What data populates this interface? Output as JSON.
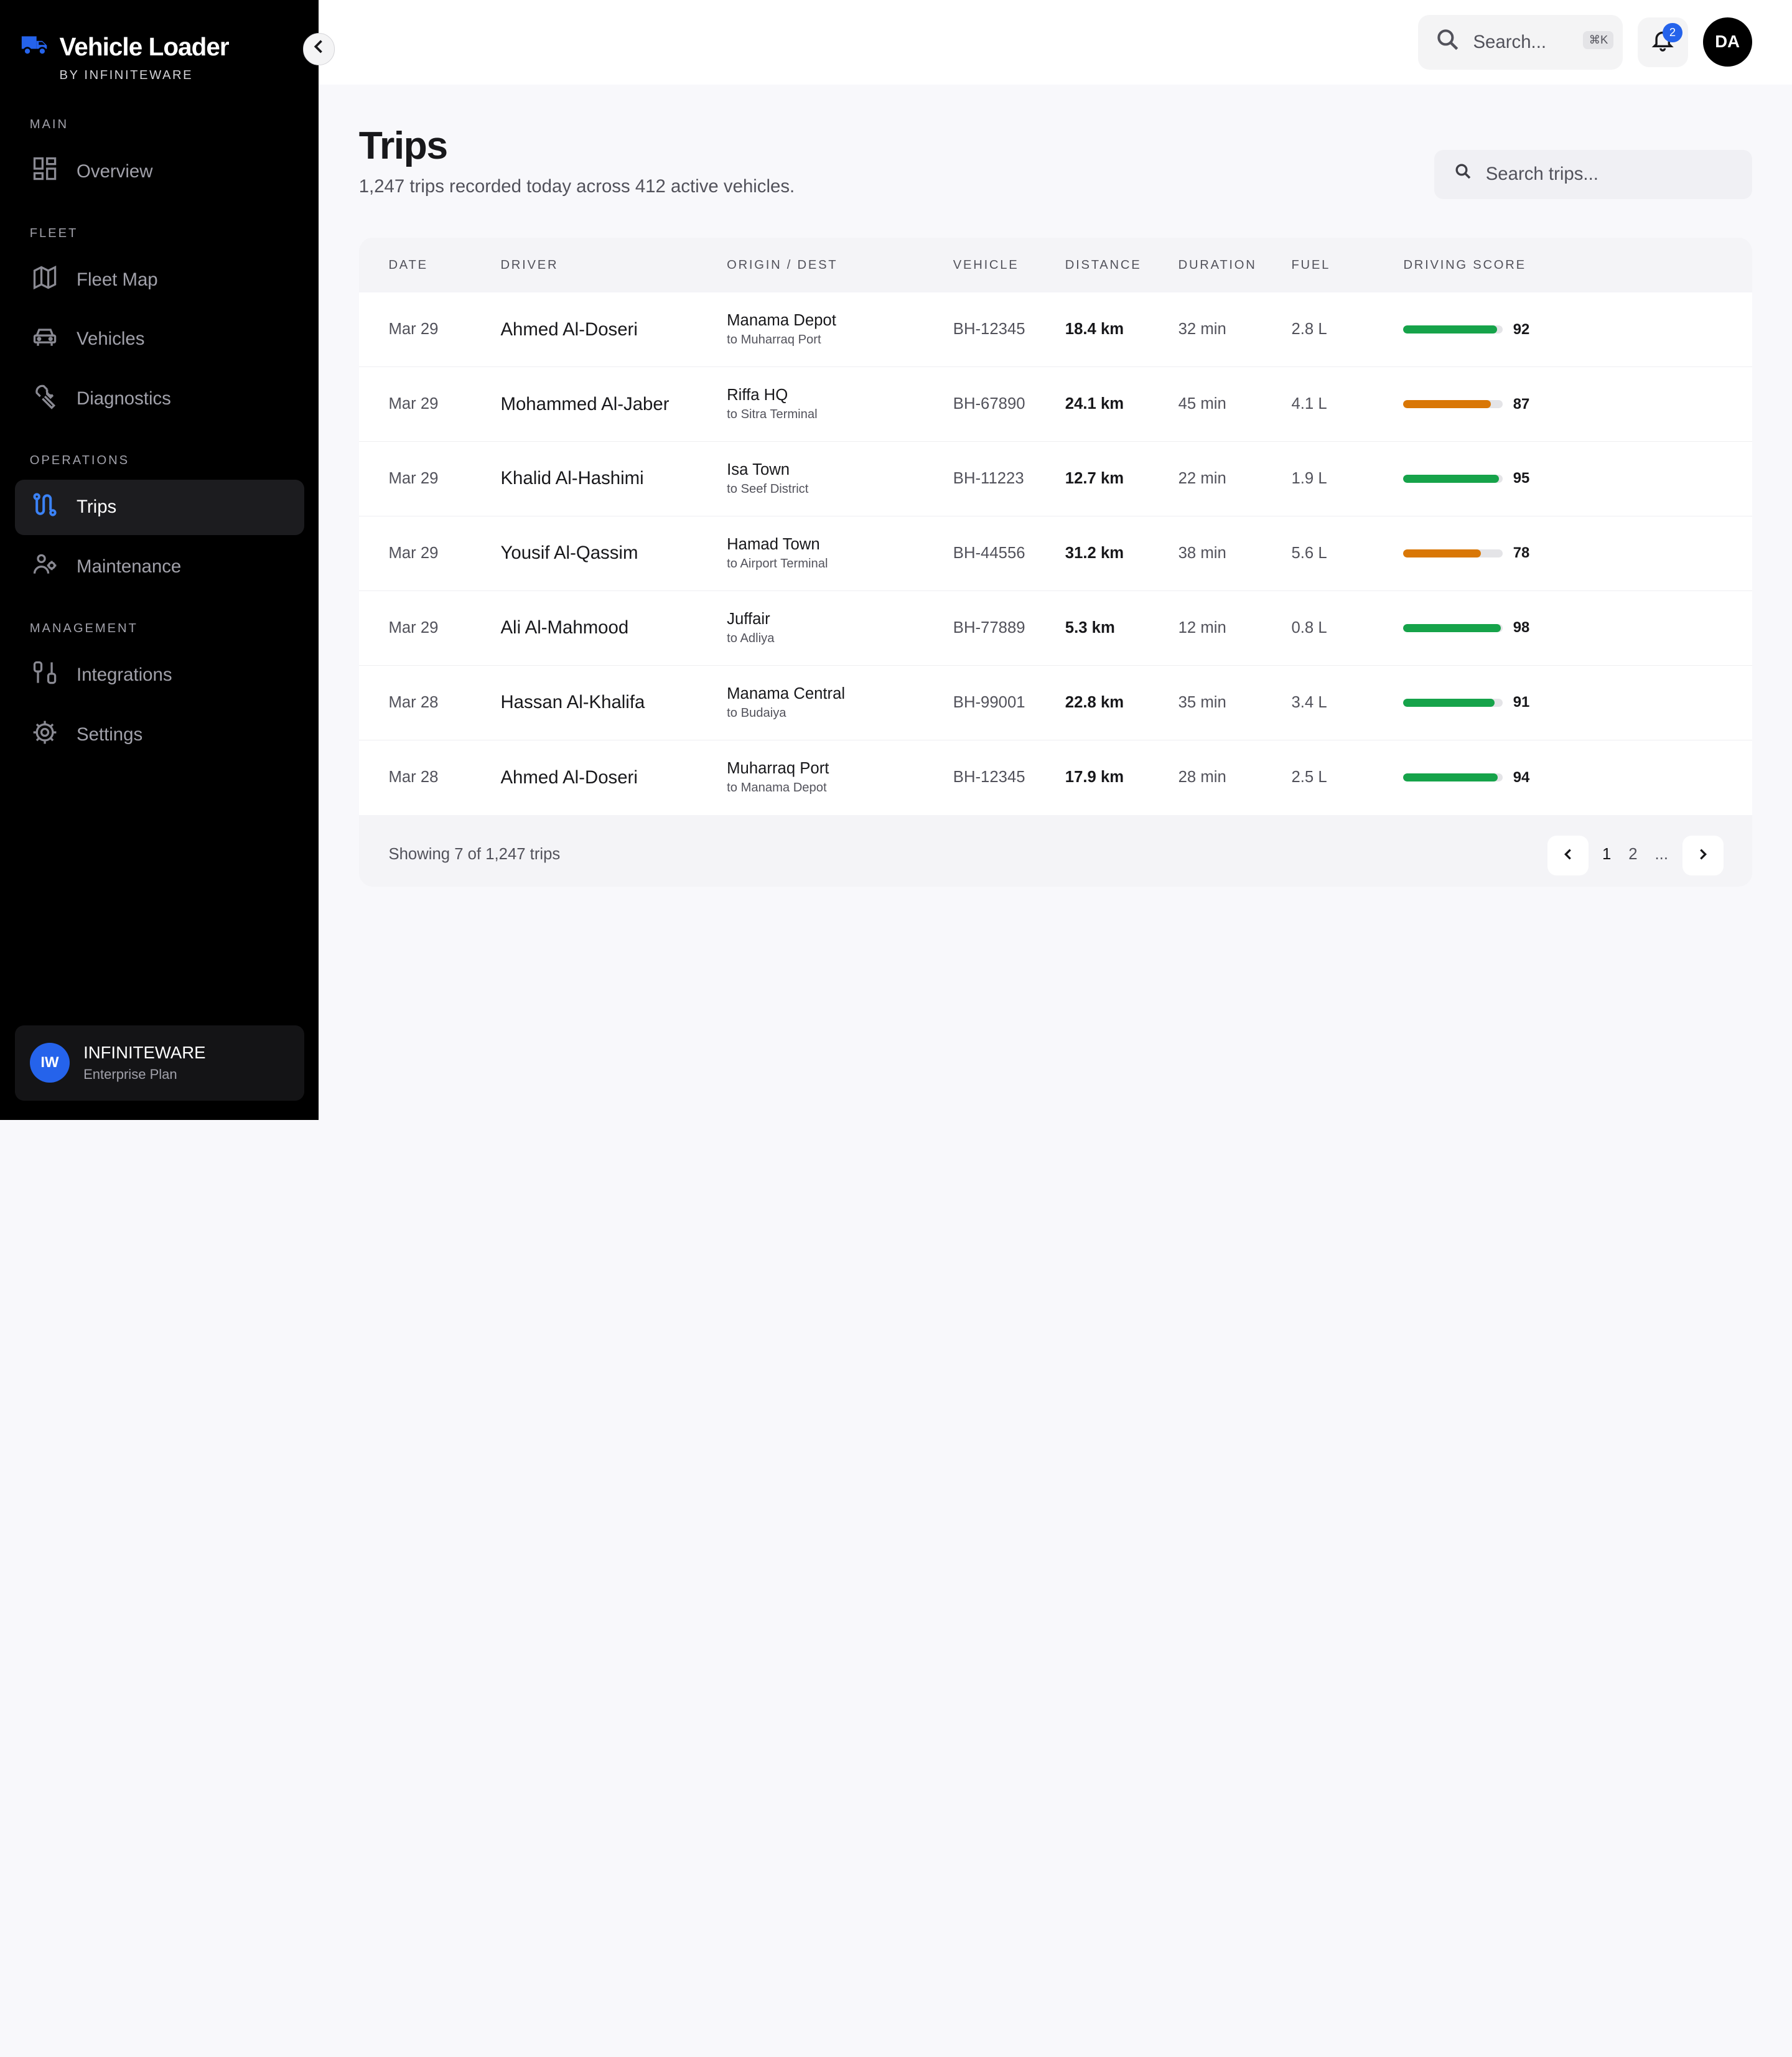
{
  "brand": {
    "name": "Vehicle Loader",
    "sub": "BY INFINITEWARE",
    "icon": "truck-icon"
  },
  "sidebar": {
    "sections": [
      {
        "label": "MAIN"
      },
      {
        "label": "FLEET"
      },
      {
        "label": "OPERATIONS"
      },
      {
        "label": "MANAGEMENT"
      }
    ],
    "items": [
      {
        "label": "Overview",
        "icon": "dashboard-icon"
      },
      {
        "label": "Fleet Map",
        "icon": "map-icon"
      },
      {
        "label": "Vehicles",
        "icon": "car-icon"
      },
      {
        "label": "Diagnostics",
        "icon": "wrench-icon"
      },
      {
        "label": "Trips",
        "icon": "route-icon",
        "active": true
      },
      {
        "label": "Maintenance",
        "icon": "mechanic-icon"
      },
      {
        "label": "Integrations",
        "icon": "plug-icon"
      },
      {
        "label": "Settings",
        "icon": "gear-icon"
      }
    ],
    "org": {
      "initials": "IW",
      "name": "INFINITEWARE",
      "plan": "Enterprise Plan"
    }
  },
  "topbar": {
    "search_placeholder": "Search...",
    "shortcut": "⌘K",
    "notification_count": "2",
    "user_initials": "DA"
  },
  "page": {
    "title": "Trips",
    "subtitle": "1,247 trips recorded today across 412 active vehicles.",
    "search_placeholder": "Search trips..."
  },
  "table": {
    "headers": {
      "date": "DATE",
      "driver": "DRIVER",
      "route": "ORIGIN / DEST",
      "vehicle": "VEHICLE",
      "distance": "DISTANCE",
      "duration": "DURATION",
      "fuel": "FUEL",
      "score": "DRIVING SCORE"
    },
    "rows": [
      {
        "date": "Mar 29",
        "driver": "Ahmed Al-Doseri",
        "origin": "Manama Depot",
        "dest": "to Muharraq Port",
        "vehicle": "BH-12345",
        "distance": "18.4 km",
        "duration": "32 min",
        "fuel": "2.8 L",
        "score": "92",
        "score_value": 0.94,
        "score_color": "#16a34a"
      },
      {
        "date": "Mar 29",
        "driver": "Mohammed Al-Jaber",
        "origin": "Riffa HQ",
        "dest": "to Sitra Terminal",
        "vehicle": "BH-67890",
        "distance": "24.1 km",
        "duration": "45 min",
        "fuel": "4.1 L",
        "score": "87",
        "score_value": 0.88,
        "score_color": "#d97706"
      },
      {
        "date": "Mar 29",
        "driver": "Khalid Al-Hashimi",
        "origin": "Isa Town",
        "dest": "to Seef District",
        "vehicle": "BH-11223",
        "distance": "12.7 km",
        "duration": "22 min",
        "fuel": "1.9 L",
        "score": "95",
        "score_value": 0.96,
        "score_color": "#16a34a"
      },
      {
        "date": "Mar 29",
        "driver": "Yousif Al-Qassim",
        "origin": "Hamad Town",
        "dest": "to Airport Terminal",
        "vehicle": "BH-44556",
        "distance": "31.2 km",
        "duration": "38 min",
        "fuel": "5.6 L",
        "score": "78",
        "score_value": 0.78,
        "score_color": "#d97706"
      },
      {
        "date": "Mar 29",
        "driver": "Ali Al-Mahmood",
        "origin": "Juffair",
        "dest": "to Adliya",
        "vehicle": "BH-77889",
        "distance": "5.3 km",
        "duration": "12 min",
        "fuel": "0.8 L",
        "score": "98",
        "score_value": 0.98,
        "score_color": "#16a34a"
      },
      {
        "date": "Mar 28",
        "driver": "Hassan Al-Khalifa",
        "origin": "Manama Central",
        "dest": "to Budaiya",
        "vehicle": "BH-99001",
        "distance": "22.8 km",
        "duration": "35 min",
        "fuel": "3.4 L",
        "score": "91",
        "score_value": 0.92,
        "score_color": "#16a34a"
      },
      {
        "date": "Mar 28",
        "driver": "Ahmed Al-Doseri",
        "origin": "Muharraq Port",
        "dest": "to Manama Depot",
        "vehicle": "BH-12345",
        "distance": "17.9 km",
        "duration": "28 min",
        "fuel": "2.5 L",
        "score": "94",
        "score_value": 0.95,
        "score_color": "#16a34a"
      }
    ]
  },
  "pagination": {
    "showing": "Showing 7 of 1,247 trips",
    "pages": [
      "1",
      "2",
      "..."
    ],
    "current": "1"
  }
}
